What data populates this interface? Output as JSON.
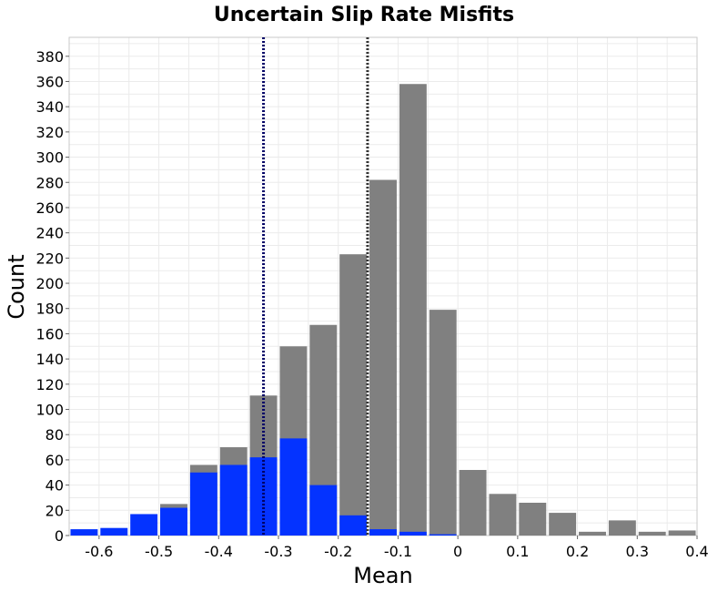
{
  "chart_data": {
    "type": "bar",
    "title": "Uncertain Slip Rate Misfits",
    "xlabel": "Mean",
    "ylabel": "Count",
    "xlim": [
      -0.65,
      0.4
    ],
    "ylim": [
      0,
      395
    ],
    "x_ticks": [
      "-0.6",
      "-0.5",
      "-0.4",
      "-0.3",
      "-0.2",
      "-0.1",
      "0",
      "0.1",
      "0.2",
      "0.3",
      "0.4"
    ],
    "x_tick_values": [
      -0.6,
      -0.5,
      -0.4,
      -0.3,
      -0.2,
      -0.1,
      0,
      0.1,
      0.2,
      0.3,
      0.4
    ],
    "y_ticks": [
      "0",
      "20",
      "40",
      "60",
      "80",
      "100",
      "120",
      "140",
      "160",
      "180",
      "200",
      "220",
      "240",
      "260",
      "280",
      "300",
      "320",
      "340",
      "360",
      "380"
    ],
    "y_tick_values": [
      0,
      20,
      40,
      60,
      80,
      100,
      120,
      140,
      160,
      180,
      200,
      220,
      240,
      260,
      280,
      300,
      320,
      340,
      360,
      380
    ],
    "grid": true,
    "bin_centers": [
      -0.625,
      -0.575,
      -0.525,
      -0.475,
      -0.425,
      -0.375,
      -0.325,
      -0.275,
      -0.225,
      -0.175,
      -0.125,
      -0.075,
      -0.025,
      0.025,
      0.075,
      0.125,
      0.175,
      0.225,
      0.275,
      0.325,
      0.375
    ],
    "bin_width": 0.05,
    "series": [
      {
        "color": "#808080",
        "values": [
          0,
          0,
          0,
          25,
          56,
          70,
          111,
          150,
          167,
          223,
          282,
          358,
          179,
          52,
          33,
          26,
          18,
          3,
          12,
          3,
          4
        ]
      },
      {
        "color": "#0433ff",
        "values": [
          5,
          6,
          17,
          22,
          50,
          56,
          62,
          77,
          40,
          16,
          5,
          3,
          1,
          0,
          0,
          0,
          0,
          0,
          0,
          0,
          0
        ]
      }
    ],
    "vertical_lines": [
      {
        "x": -0.325,
        "color": "#000066",
        "style": "dotted"
      },
      {
        "x": -0.151,
        "color": "#333333",
        "style": "dotted"
      }
    ]
  }
}
